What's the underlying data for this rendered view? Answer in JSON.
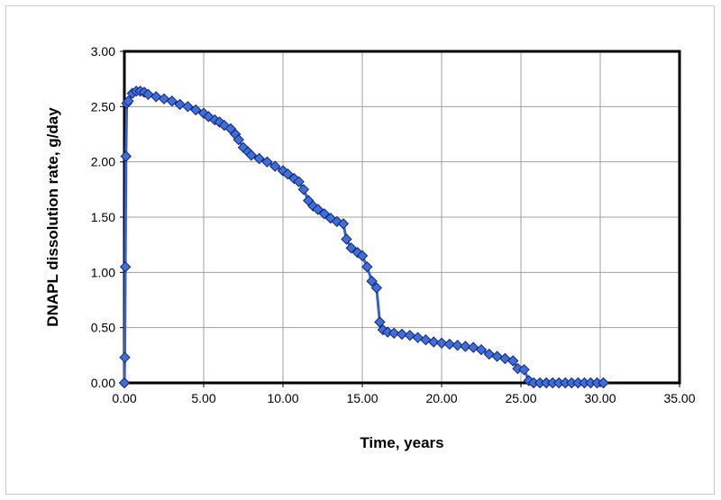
{
  "chart_data": {
    "type": "scatter",
    "title": "",
    "xlabel": "Time, years",
    "ylabel": "DNAPL dissolution rate, g/day",
    "xlim": [
      0,
      35
    ],
    "ylim": [
      0,
      3
    ],
    "x_ticks": [
      "0.00",
      "5.00",
      "10.00",
      "15.00",
      "20.00",
      "25.00",
      "30.00",
      "35.00"
    ],
    "y_ticks": [
      "0.00",
      "0.50",
      "1.00",
      "1.50",
      "2.00",
      "2.50",
      "3.00"
    ],
    "grid": true,
    "legend": "none",
    "line_color": "#3a5fd0",
    "marker_color": "#3e6fd6",
    "marker_edge_color": "#14247a",
    "marker_shape": "diamond",
    "series": [
      {
        "x": [
          0.0,
          0.03,
          0.06,
          0.1,
          0.15,
          0.25,
          0.5,
          0.75,
          1.0,
          1.25,
          1.5,
          2.0,
          2.5,
          3.0,
          3.5,
          4.0,
          4.5,
          5.0,
          5.3,
          5.7,
          6.0,
          6.3,
          6.7,
          7.0,
          7.2,
          7.5,
          7.8,
          8.0,
          8.5,
          9.0,
          9.5,
          10.0,
          10.3,
          10.7,
          11.0,
          11.3,
          11.6,
          11.9,
          12.2,
          12.6,
          13.0,
          13.4,
          13.8,
          14.0,
          14.3,
          14.7,
          15.0,
          15.3,
          15.6,
          15.9,
          16.1,
          16.3,
          16.6,
          17.0,
          17.5,
          18.0,
          18.5,
          19.0,
          19.5,
          20.0,
          20.5,
          21.0,
          21.5,
          22.0,
          22.5,
          23.0,
          23.5,
          24.0,
          24.5,
          24.8,
          25.2,
          25.5,
          25.8,
          26.2,
          26.6,
          27.0,
          27.4,
          27.8,
          28.2,
          28.6,
          29.0,
          29.4,
          29.8,
          30.2
        ],
        "y": [
          0.0,
          0.23,
          1.05,
          2.05,
          2.53,
          2.55,
          2.62,
          2.64,
          2.64,
          2.63,
          2.61,
          2.59,
          2.57,
          2.55,
          2.52,
          2.5,
          2.47,
          2.44,
          2.41,
          2.38,
          2.36,
          2.33,
          2.3,
          2.25,
          2.2,
          2.13,
          2.09,
          2.06,
          2.03,
          2.0,
          1.96,
          1.92,
          1.89,
          1.85,
          1.82,
          1.75,
          1.65,
          1.6,
          1.57,
          1.53,
          1.49,
          1.46,
          1.44,
          1.3,
          1.22,
          1.18,
          1.15,
          1.05,
          0.92,
          0.86,
          0.55,
          0.48,
          0.46,
          0.45,
          0.44,
          0.43,
          0.41,
          0.39,
          0.37,
          0.36,
          0.35,
          0.34,
          0.33,
          0.32,
          0.3,
          0.26,
          0.24,
          0.22,
          0.2,
          0.13,
          0.12,
          0.02,
          0.0,
          0.0,
          0.0,
          0.0,
          0.0,
          0.0,
          0.0,
          0.0,
          0.0,
          0.0,
          0.0,
          0.0
        ]
      }
    ]
  }
}
